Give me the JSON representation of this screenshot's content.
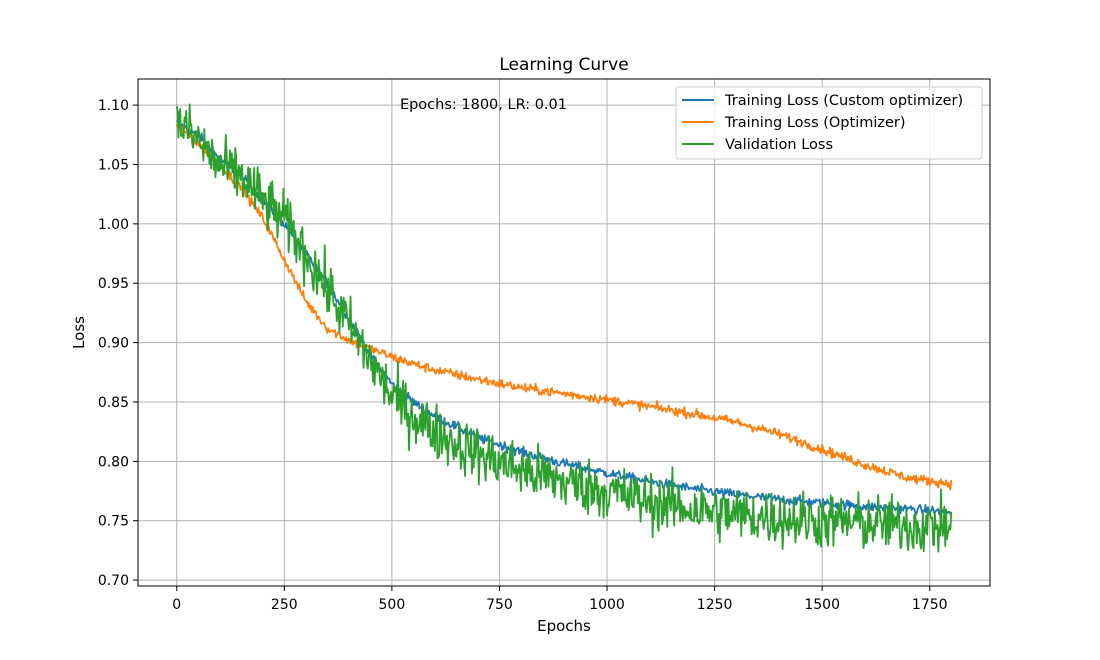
{
  "chart_data": {
    "type": "line",
    "title": "Learning Curve",
    "xlabel": "Epochs",
    "ylabel": "Loss",
    "xlim": [
      -90,
      1890
    ],
    "ylim": [
      0.695,
      1.122
    ],
    "xticks": [
      0,
      250,
      500,
      750,
      1000,
      1250,
      1500,
      1750
    ],
    "yticks": [
      0.7,
      0.75,
      0.8,
      0.85,
      0.9,
      0.95,
      1.0,
      1.05,
      1.1
    ],
    "grid": true,
    "legend_position": "top-right",
    "annotation": "Epochs: 1800, LR: 0.01",
    "x_range": [
      0,
      1800
    ],
    "series": [
      {
        "name": "Training Loss (Custom optimizer)",
        "color": "#1f77b4",
        "noise": 0.002,
        "points": [
          [
            0,
            1.085
          ],
          [
            50,
            1.075
          ],
          [
            100,
            1.055
          ],
          [
            150,
            1.04
          ],
          [
            200,
            1.02
          ],
          [
            250,
            1.0
          ],
          [
            300,
            0.975
          ],
          [
            350,
            0.95
          ],
          [
            400,
            0.92
          ],
          [
            450,
            0.89
          ],
          [
            500,
            0.865
          ],
          [
            550,
            0.85
          ],
          [
            600,
            0.838
          ],
          [
            700,
            0.82
          ],
          [
            800,
            0.808
          ],
          [
            900,
            0.798
          ],
          [
            1000,
            0.79
          ],
          [
            1100,
            0.783
          ],
          [
            1200,
            0.777
          ],
          [
            1300,
            0.772
          ],
          [
            1400,
            0.768
          ],
          [
            1500,
            0.765
          ],
          [
            1600,
            0.762
          ],
          [
            1700,
            0.76
          ],
          [
            1800,
            0.757
          ]
        ]
      },
      {
        "name": "Training Loss (Optimizer)",
        "color": "#ff7f0e",
        "noise": 0.002,
        "points": [
          [
            0,
            1.083
          ],
          [
            50,
            1.068
          ],
          [
            100,
            1.05
          ],
          [
            150,
            1.03
          ],
          [
            200,
            1.005
          ],
          [
            250,
            0.97
          ],
          [
            300,
            0.935
          ],
          [
            350,
            0.912
          ],
          [
            400,
            0.902
          ],
          [
            450,
            0.895
          ],
          [
            500,
            0.888
          ],
          [
            550,
            0.882
          ],
          [
            600,
            0.877
          ],
          [
            700,
            0.869
          ],
          [
            800,
            0.862
          ],
          [
            900,
            0.857
          ],
          [
            1000,
            0.852
          ],
          [
            1100,
            0.846
          ],
          [
            1200,
            0.84
          ],
          [
            1300,
            0.833
          ],
          [
            1400,
            0.823
          ],
          [
            1500,
            0.81
          ],
          [
            1600,
            0.797
          ],
          [
            1700,
            0.786
          ],
          [
            1800,
            0.781
          ]
        ]
      },
      {
        "name": "Validation Loss",
        "color": "#2ca02c",
        "noise": 0.012,
        "points": [
          [
            0,
            1.087
          ],
          [
            50,
            1.07
          ],
          [
            100,
            1.048
          ],
          [
            150,
            1.04
          ],
          [
            200,
            1.02
          ],
          [
            250,
            1.003
          ],
          [
            300,
            0.975
          ],
          [
            350,
            0.945
          ],
          [
            400,
            0.915
          ],
          [
            450,
            0.885
          ],
          [
            500,
            0.855
          ],
          [
            550,
            0.838
          ],
          [
            600,
            0.825
          ],
          [
            700,
            0.806
          ],
          [
            800,
            0.793
          ],
          [
            900,
            0.783
          ],
          [
            1000,
            0.775
          ],
          [
            1100,
            0.766
          ],
          [
            1200,
            0.76
          ],
          [
            1300,
            0.755
          ],
          [
            1400,
            0.752
          ],
          [
            1500,
            0.75
          ],
          [
            1600,
            0.748
          ],
          [
            1700,
            0.746
          ],
          [
            1800,
            0.745
          ]
        ]
      }
    ]
  }
}
